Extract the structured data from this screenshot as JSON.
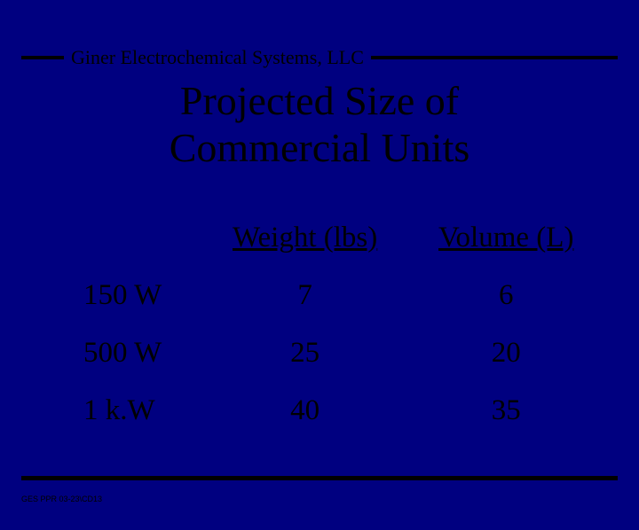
{
  "colors": {
    "background": "#000080",
    "text": "#000000",
    "rule": "#000000"
  },
  "typography": {
    "family": "Times New Roman",
    "company_fontsize": 22,
    "title_fontsize": 46,
    "table_fontsize": 33,
    "footer_fontsize": 9
  },
  "header": {
    "company": "Giner Electrochemical Systems, LLC"
  },
  "title": {
    "line1": "Projected Size of",
    "line2": "Commercial Units"
  },
  "table": {
    "type": "table",
    "columns": [
      "",
      "Weight (lbs)",
      "Volume (L)"
    ],
    "rows": [
      [
        "150 W",
        "7",
        "6"
      ],
      [
        "500 W",
        "25",
        "20"
      ],
      [
        "1 k.W",
        "40",
        "35"
      ]
    ],
    "column_align": [
      "left",
      "center",
      "center"
    ],
    "header_underline": [
      false,
      true,
      true
    ]
  },
  "footer": {
    "code": "GES PPR 03-23\\CD13"
  }
}
